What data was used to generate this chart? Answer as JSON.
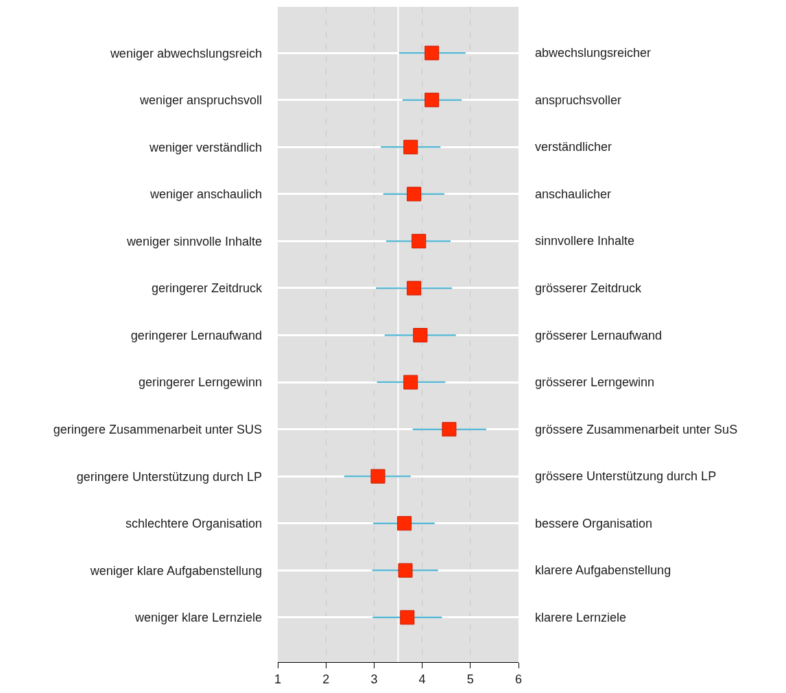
{
  "chart_data": {
    "type": "scatter",
    "orientation": "horizontal",
    "categories": [
      "weniger abwechslungsreich",
      "weniger anspruchsvoll",
      "weniger verständlich",
      "weniger anschaulich",
      "weniger sinnvolle Inhalte",
      "geringerer Zeitdruck",
      "geringerer Lernaufwand",
      "geringerer Lerngewinn",
      "geringere Zusammenarbeit unter SUS",
      "geringere Unterstützung durch LP",
      "schlechtere Organisation",
      "weniger klare Aufgabenstellung",
      "weniger klare Lernziele"
    ],
    "y2_categories": [
      "abwechslungsreicher",
      "anspruchsvoller",
      "verständlicher",
      "anschaulicher",
      "sinnvollere Inhalte",
      "grösserer Zeitdruck",
      "grösserer Lernaufwand",
      "grösserer Lerngewinn",
      "grössere Zusammenarbeit unter SuS",
      "grössere Unterstützung durch LP",
      "bessere Organisation",
      "klarere Aufgabenstellung",
      "klarere Lernziele"
    ],
    "series": [
      {
        "color": "#ff2a00",
        "values": [
          4.2,
          4.2,
          3.76,
          3.83,
          3.93,
          3.83,
          3.96,
          3.76,
          4.56,
          3.08,
          3.63,
          3.65,
          3.69
        ],
        "errors": [
          [
            3.52,
            4.9
          ],
          [
            3.59,
            4.82
          ],
          [
            3.14,
            4.38
          ],
          [
            3.19,
            4.46
          ],
          [
            3.25,
            4.59
          ],
          [
            3.04,
            4.62
          ],
          [
            3.22,
            4.7
          ],
          [
            3.06,
            4.48
          ],
          [
            3.8,
            5.33
          ],
          [
            2.38,
            3.76
          ],
          [
            2.98,
            4.26
          ],
          [
            2.96,
            4.33
          ],
          [
            2.97,
            4.41
          ]
        ]
      }
    ],
    "xlim": [
      1,
      6
    ],
    "xticks": [
      1,
      2,
      3,
      4,
      5,
      6
    ],
    "grid": true,
    "marker": "square",
    "ref_lines": [
      {
        "axis": "x",
        "value": 3.5,
        "color": "#ffffff"
      }
    ]
  }
}
